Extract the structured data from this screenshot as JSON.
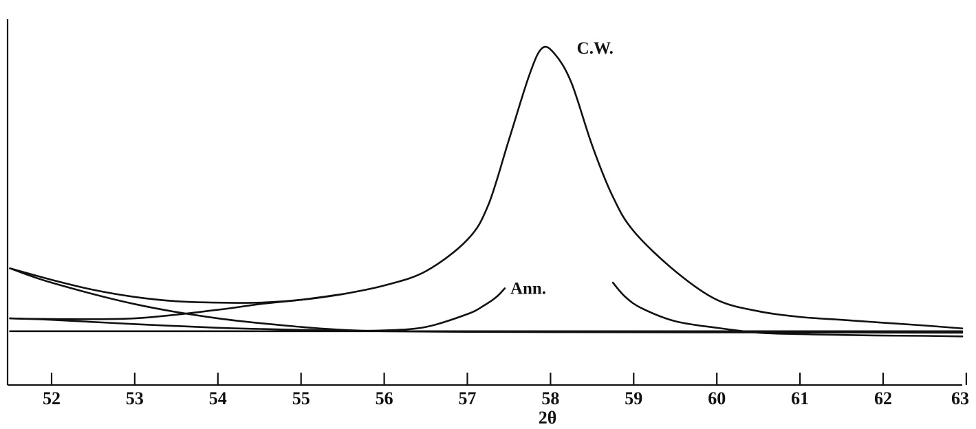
{
  "chart_data": {
    "type": "line",
    "xlabel": "2θ",
    "ylabel": "",
    "title": "",
    "xlim": [
      51.5,
      63
    ],
    "ylim": [
      0,
      100
    ],
    "grid": false,
    "x_ticks": [
      52,
      53,
      54,
      55,
      56,
      57,
      58,
      59,
      60,
      61,
      62,
      63
    ],
    "annotations": [
      {
        "text": "C.W.",
        "x": 58.3,
        "y": 100
      },
      {
        "text": "Ann.",
        "x": 57.5,
        "y": 16
      }
    ],
    "series": [
      {
        "name": "C.W.",
        "x": [
          51.5,
          52.0,
          52.5,
          53.0,
          53.5,
          54.0,
          54.5,
          55.0,
          55.5,
          56.0,
          56.5,
          57.0,
          57.25,
          57.5,
          57.75,
          57.9,
          58.05,
          58.25,
          58.5,
          58.75,
          59.0,
          59.5,
          60.0,
          60.5,
          61.0,
          61.5,
          62.0,
          62.5,
          63.0
        ],
        "y": [
          23,
          19,
          15.5,
          13,
          11.5,
          11,
          11,
          12,
          14,
          17,
          22,
          33,
          45,
          68,
          91,
          100,
          98,
          88,
          66,
          48,
          36,
          22,
          12,
          8,
          6,
          5,
          4,
          3,
          2
        ]
      },
      {
        "name": "Ann.",
        "x": [
          51.5,
          52.0,
          53.0,
          54.0,
          54.5,
          55.0,
          55.5,
          56.0,
          56.5,
          57.0,
          57.2,
          57.35,
          57.45
        ],
        "y": [
          5.5,
          5,
          3.5,
          2.2,
          1.8,
          1.5,
          1.2,
          1.3,
          2.5,
          7,
          10,
          13,
          16
        ]
      },
      {
        "name": "Ann.",
        "x": [
          58.75,
          58.9,
          59.1,
          59.5,
          60.0,
          60.5,
          61.0,
          61.5,
          62.0,
          62.5,
          63.0
        ],
        "y": [
          18,
          13,
          9,
          4.5,
          2.2,
          0.5,
          0,
          -0.3,
          -0.5,
          -0.6,
          -0.8
        ]
      },
      {
        "name": "",
        "x": [
          51.5,
          52.0,
          53.0,
          54.0,
          55.0,
          55.5,
          56.0,
          57.0,
          58.0,
          60.0,
          63.0
        ],
        "y": [
          23,
          18,
          10.5,
          5.5,
          2.5,
          1.5,
          1.0,
          0.8,
          0.7,
          0.6,
          0.5
        ]
      },
      {
        "name": "",
        "x": [
          51.5,
          52.0,
          53.0,
          54.0,
          54.5,
          55.0,
          55.5
        ],
        "y": [
          5.5,
          5.3,
          5.5,
          8.5,
          10.5,
          12,
          14
        ]
      },
      {
        "name": "",
        "x": [
          51.5,
          55.0,
          58.0,
          60.0,
          63.0
        ],
        "y": [
          1,
          1,
          1,
          1,
          1
        ]
      }
    ]
  }
}
